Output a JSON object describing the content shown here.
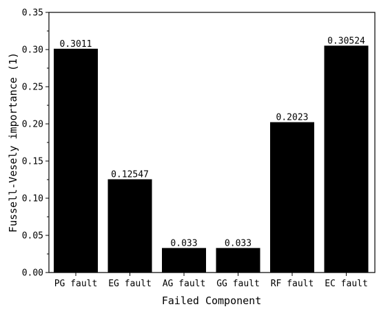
{
  "chart_data": {
    "type": "bar",
    "title": "",
    "xlabel": "Failed Component",
    "ylabel": "Fussell-Vesely importance (1)",
    "categories": [
      "PG fault",
      "EG fault",
      "AG fault",
      "GG fault",
      "RF fault",
      "EC fault"
    ],
    "values": [
      0.3011,
      0.12547,
      0.033,
      0.033,
      0.2023,
      0.30524
    ],
    "data_labels": [
      "0.3011",
      "0.12547",
      "0.033",
      "0.033",
      "0.2023",
      "0.30524"
    ],
    "ylim": [
      0,
      0.35
    ],
    "yticks": [
      "0.00",
      "0.05",
      "0.10",
      "0.15",
      "0.20",
      "0.25",
      "0.30",
      "0.35"
    ],
    "grid": false,
    "bar_color": "#000000"
  }
}
